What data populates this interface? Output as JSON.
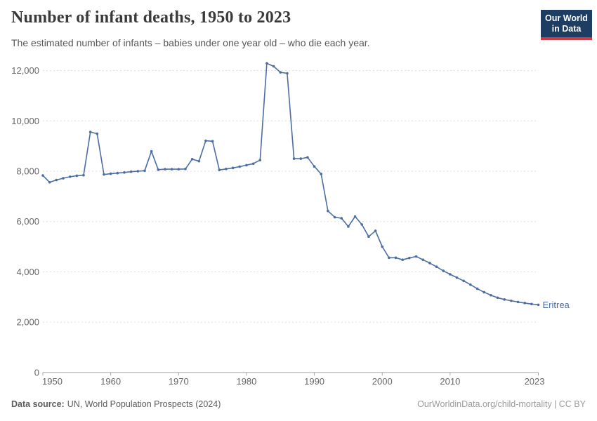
{
  "header": {
    "title": "Number of infant deaths, 1950 to 2023",
    "subtitle": "The estimated number of infants – babies under one year old – who die each year.",
    "logo": {
      "line1": "Our World",
      "line2": "in Data"
    }
  },
  "chart_data": {
    "type": "line",
    "title": "Number of infant deaths, 1950 to 2023",
    "xlabel": "",
    "ylabel": "",
    "xlim": [
      1950,
      2023
    ],
    "ylim": [
      0,
      12600
    ],
    "x_ticks": [
      1950,
      1960,
      1970,
      1980,
      1990,
      2000,
      2010,
      2023
    ],
    "y_ticks": [
      0,
      2000,
      4000,
      6000,
      8000,
      10000,
      12000
    ],
    "grid": "horizontal-dashed",
    "legend_position": "end-of-line",
    "series": [
      {
        "name": "Eritrea",
        "color": "#4c6da2",
        "x": [
          1950,
          1951,
          1952,
          1953,
          1954,
          1955,
          1956,
          1957,
          1958,
          1959,
          1960,
          1961,
          1962,
          1963,
          1964,
          1965,
          1966,
          1967,
          1968,
          1969,
          1970,
          1971,
          1972,
          1973,
          1974,
          1975,
          1976,
          1977,
          1978,
          1979,
          1980,
          1981,
          1982,
          1983,
          1984,
          1985,
          1986,
          1987,
          1988,
          1989,
          1990,
          1991,
          1992,
          1993,
          1994,
          1995,
          1996,
          1997,
          1998,
          1999,
          2000,
          2001,
          2002,
          2003,
          2004,
          2005,
          2006,
          2007,
          2008,
          2009,
          2010,
          2011,
          2012,
          2013,
          2014,
          2015,
          2016,
          2017,
          2018,
          2019,
          2020,
          2021,
          2022,
          2023
        ],
        "values": [
          7830,
          7560,
          7650,
          7720,
          7780,
          7820,
          7840,
          9560,
          9490,
          7870,
          7900,
          7925,
          7950,
          7980,
          8000,
          8020,
          8790,
          8060,
          8080,
          8080,
          8080,
          8090,
          8480,
          8400,
          9210,
          9190,
          8050,
          8090,
          8130,
          8180,
          8240,
          8300,
          8440,
          12290,
          12170,
          11930,
          11890,
          8500,
          8500,
          8550,
          8190,
          7890,
          6420,
          6170,
          6130,
          5800,
          6200,
          5880,
          5400,
          5630,
          5000,
          4560,
          4560,
          4480,
          4550,
          4610,
          4480,
          4350,
          4200,
          4040,
          3900,
          3770,
          3640,
          3490,
          3330,
          3190,
          3070,
          2970,
          2900,
          2850,
          2800,
          2760,
          2720,
          2690
        ]
      }
    ]
  },
  "footer": {
    "source_label": "Data source:",
    "source_text": "UN, World Population Prospects (2024)",
    "right_text": "OurWorldinData.org/child-mortality | CC BY"
  },
  "colors": {
    "line": "#4c6da2",
    "grid": "#dedede",
    "axis": "#a8a8a8",
    "tick_label": "#666666",
    "logo_bg": "#1d3d63",
    "logo_accent": "#cc3b46"
  }
}
